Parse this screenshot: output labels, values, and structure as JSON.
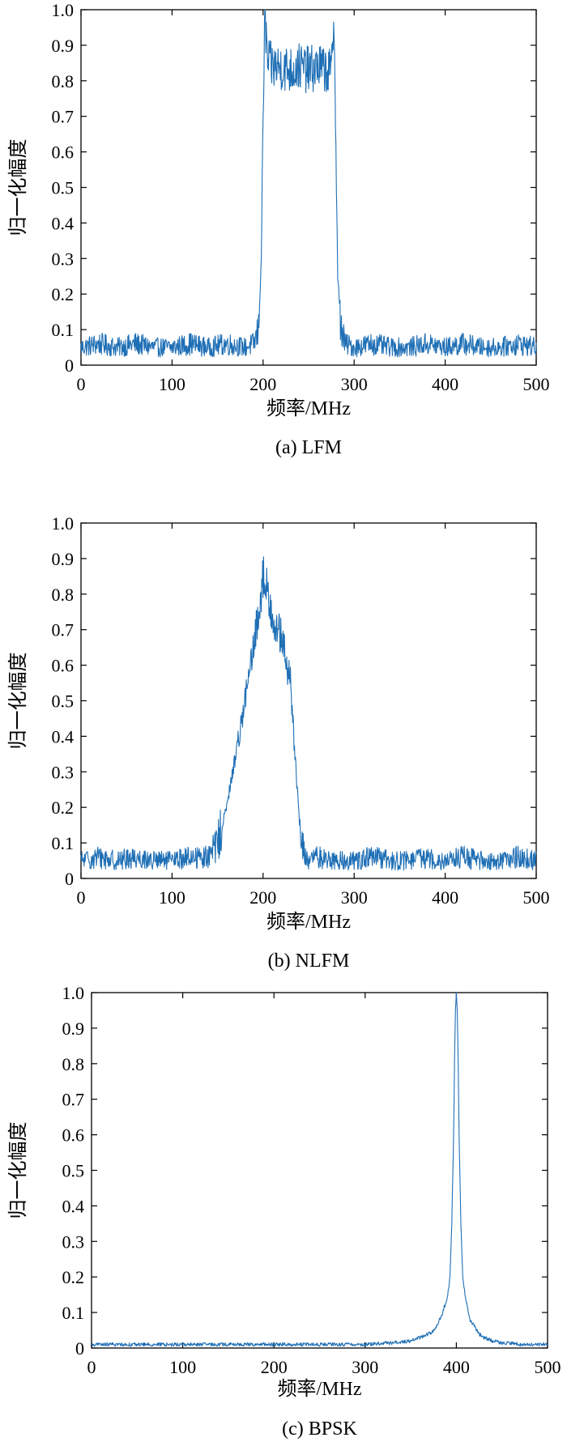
{
  "colors": {
    "trace": "#1f6fb5",
    "axis": "#000000"
  },
  "chart_data": [
    {
      "type": "line",
      "caption": "(a) LFM",
      "xlabel": "频率/MHz",
      "ylabel": "归一化幅度",
      "xlim": [
        0,
        500
      ],
      "ylim": [
        0,
        1.0
      ],
      "x_ticks": [
        "0",
        "100",
        "200",
        "300",
        "400",
        "500"
      ],
      "y_ticks": [
        "0",
        "0.1",
        "0.2",
        "0.3",
        "0.4",
        "0.5",
        "0.6",
        "0.7",
        "0.8",
        "0.9",
        "1.0"
      ],
      "grid": false,
      "series": [
        {
          "x": [
            0,
            20,
            40,
            60,
            80,
            100,
            120,
            140,
            160,
            180,
            190,
            195,
            198,
            200,
            202,
            205,
            210,
            220,
            230,
            240,
            250,
            260,
            270,
            275,
            278,
            280,
            282,
            285,
            290,
            300,
            320,
            340,
            360,
            380,
            400,
            420,
            440,
            460,
            480,
            500
          ],
          "values": [
            0.05,
            0.06,
            0.05,
            0.06,
            0.05,
            0.05,
            0.06,
            0.05,
            0.06,
            0.05,
            0.06,
            0.1,
            0.3,
            0.7,
            0.99,
            0.85,
            0.84,
            0.84,
            0.83,
            0.84,
            0.83,
            0.84,
            0.83,
            0.82,
            1.0,
            0.6,
            0.25,
            0.12,
            0.06,
            0.05,
            0.06,
            0.05,
            0.05,
            0.06,
            0.05,
            0.06,
            0.05,
            0.05,
            0.06,
            0.05
          ]
        }
      ]
    },
    {
      "type": "line",
      "caption": "(b) NLFM",
      "xlabel": "频率/MHz",
      "ylabel": "归一化幅度",
      "xlim": [
        0,
        500
      ],
      "ylim": [
        0,
        1.0
      ],
      "x_ticks": [
        "0",
        "100",
        "200",
        "300",
        "400",
        "500"
      ],
      "y_ticks": [
        "0",
        "0.1",
        "0.2",
        "0.3",
        "0.4",
        "0.5",
        "0.6",
        "0.7",
        "0.8",
        "0.9",
        "1.0"
      ],
      "grid": false,
      "series": [
        {
          "x": [
            0,
            20,
            40,
            60,
            80,
            100,
            120,
            140,
            150,
            160,
            170,
            180,
            190,
            195,
            200,
            205,
            210,
            215,
            220,
            230,
            235,
            240,
            245,
            250,
            260,
            280,
            300,
            320,
            340,
            360,
            380,
            400,
            420,
            440,
            460,
            480,
            500
          ],
          "values": [
            0.05,
            0.06,
            0.05,
            0.06,
            0.05,
            0.05,
            0.06,
            0.06,
            0.1,
            0.2,
            0.35,
            0.5,
            0.65,
            0.75,
            0.85,
            0.8,
            0.75,
            0.7,
            0.68,
            0.55,
            0.35,
            0.15,
            0.07,
            0.05,
            0.06,
            0.05,
            0.05,
            0.06,
            0.05,
            0.05,
            0.06,
            0.05,
            0.06,
            0.05,
            0.05,
            0.06,
            0.05
          ]
        }
      ]
    },
    {
      "type": "line",
      "caption": "(c) BPSK",
      "xlabel": "频率/MHz",
      "ylabel": "归一化幅度",
      "xlim": [
        0,
        500
      ],
      "ylim": [
        0,
        1.0
      ],
      "x_ticks": [
        "0",
        "100",
        "200",
        "300",
        "400",
        "500"
      ],
      "y_ticks": [
        "0",
        "0.1",
        "0.2",
        "0.3",
        "0.4",
        "0.5",
        "0.6",
        "0.7",
        "0.8",
        "0.9",
        "1.0"
      ],
      "grid": false,
      "series": [
        {
          "x": [
            0,
            50,
            100,
            150,
            200,
            250,
            300,
            330,
            350,
            360,
            370,
            375,
            380,
            385,
            390,
            393,
            395,
            397,
            398,
            399,
            400,
            401,
            402,
            403,
            405,
            407,
            410,
            415,
            420,
            425,
            430,
            440,
            450,
            470,
            500
          ],
          "values": [
            0.01,
            0.01,
            0.01,
            0.01,
            0.01,
            0.01,
            0.01,
            0.015,
            0.02,
            0.03,
            0.04,
            0.05,
            0.07,
            0.1,
            0.14,
            0.2,
            0.35,
            0.6,
            0.8,
            0.95,
            1.0,
            0.95,
            0.8,
            0.6,
            0.35,
            0.2,
            0.14,
            0.08,
            0.06,
            0.04,
            0.03,
            0.02,
            0.015,
            0.01,
            0.01
          ]
        }
      ]
    }
  ]
}
